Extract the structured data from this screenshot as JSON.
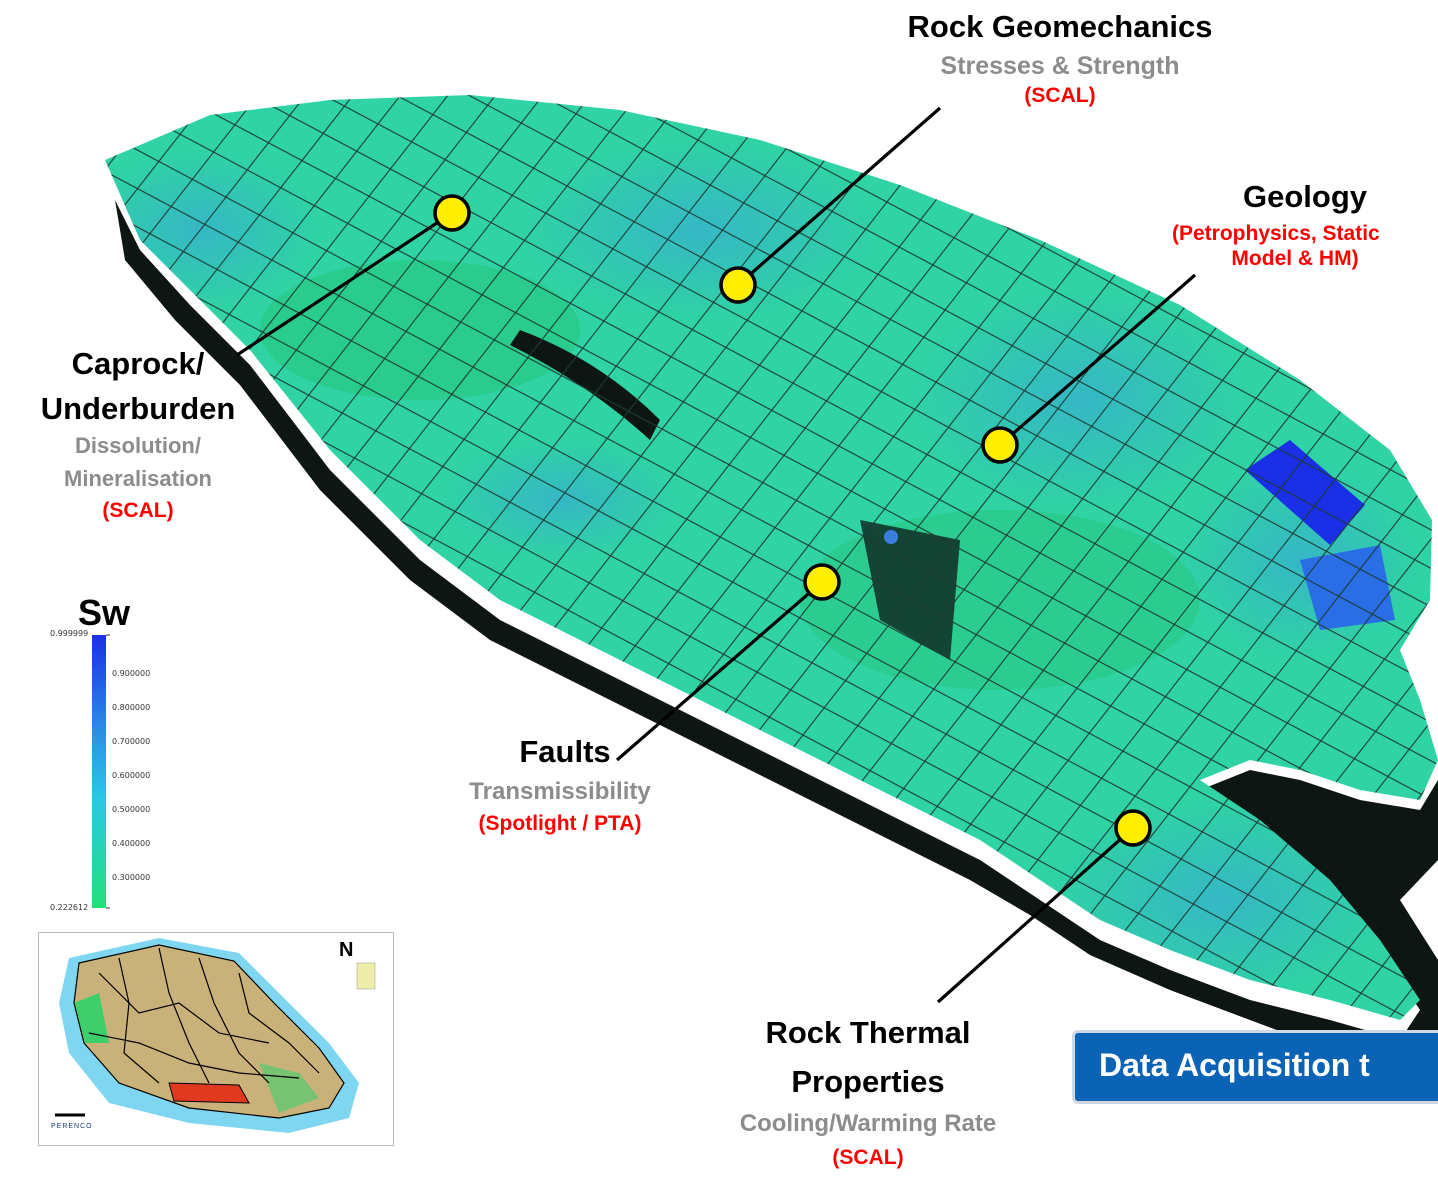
{
  "labels": {
    "geomechanics": {
      "title": "Rock Geomechanics",
      "subtitle": "Stresses & Strength",
      "note": "(SCAL)"
    },
    "geology": {
      "title": "Geology",
      "note_line1": "(Petrophysics, Static",
      "note_line2": "Model & HM)"
    },
    "caprock": {
      "title_line1": "Caprock/",
      "title_line2": "Underburden",
      "subtitle_line1": "Dissolution/",
      "subtitle_line2": "Mineralisation",
      "note": "(SCAL)"
    },
    "faults": {
      "title": "Faults",
      "subtitle": "Transmissibility",
      "note": "(Spotlight / PTA)"
    },
    "thermal": {
      "title_line1": "Rock Thermal",
      "title_line2": "Properties",
      "subtitle": "Cooling/Warming Rate",
      "note": "(SCAL)"
    }
  },
  "legend": {
    "title": "Sw",
    "max": "0.999999",
    "min": "0.222612",
    "ticks": [
      "0.900000",
      "0.800000",
      "0.700000",
      "0.600000",
      "0.500000",
      "0.400000",
      "0.300000"
    ]
  },
  "banner": {
    "text": "Data Acquisition t"
  },
  "inset_map": {
    "north_label": "N",
    "logo_text": "PERENCO"
  },
  "colors": {
    "accent_red": "#ff0000",
    "subtitle_gray": "#8c8c8c",
    "marker_yellow": "#ffee00",
    "banner_blue": "#0b63b5",
    "legend_top": "#1a2fe6",
    "legend_mid": "#28c8e6",
    "legend_bottom": "#22e07a"
  }
}
